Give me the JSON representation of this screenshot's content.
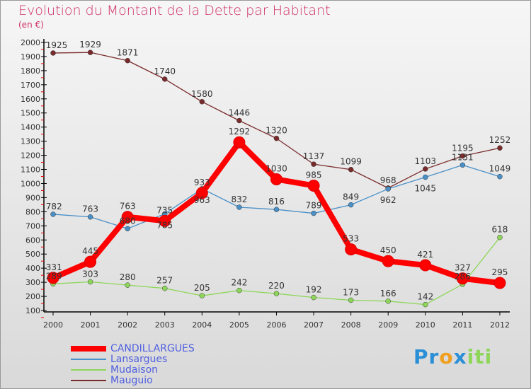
{
  "chart_data": {
    "type": "line",
    "title": "Evolution du Montant de la Dette par Habitant",
    "subtitle": "(en €)",
    "x": [
      "2000",
      "2001",
      "2002",
      "2003",
      "2004",
      "2005",
      "2006",
      "2007",
      "2008",
      "2009",
      "2010",
      "2011",
      "2012"
    ],
    "ylim": [
      100,
      2000
    ],
    "yticks": [
      100,
      200,
      300,
      400,
      500,
      600,
      700,
      800,
      900,
      1000,
      1100,
      1200,
      1300,
      1400,
      1500,
      1600,
      1700,
      1800,
      1900,
      2000
    ],
    "series": [
      {
        "name": "CANDILLARGUES",
        "color": "#ff0000",
        "values": [
          331,
          445,
          763,
          735,
          933,
          1292,
          1030,
          985,
          533,
          450,
          421,
          327,
          295
        ]
      },
      {
        "name": "Lansargues",
        "color": "#4a90c8",
        "values": [
          782,
          763,
          680,
          785,
          963,
          832,
          816,
          789,
          849,
          962,
          1045,
          1131,
          1049
        ]
      },
      {
        "name": "Mudaison",
        "color": "#8ed65a",
        "values": [
          289,
          303,
          280,
          257,
          205,
          242,
          220,
          192,
          173,
          166,
          142,
          286,
          618
        ]
      },
      {
        "name": "Mauguio",
        "color": "#7a2a2a",
        "values": [
          1925,
          1929,
          1871,
          1740,
          1580,
          1446,
          1320,
          1137,
          1099,
          968,
          1103,
          1195,
          1252
        ]
      }
    ]
  },
  "logo": "Proxiti"
}
